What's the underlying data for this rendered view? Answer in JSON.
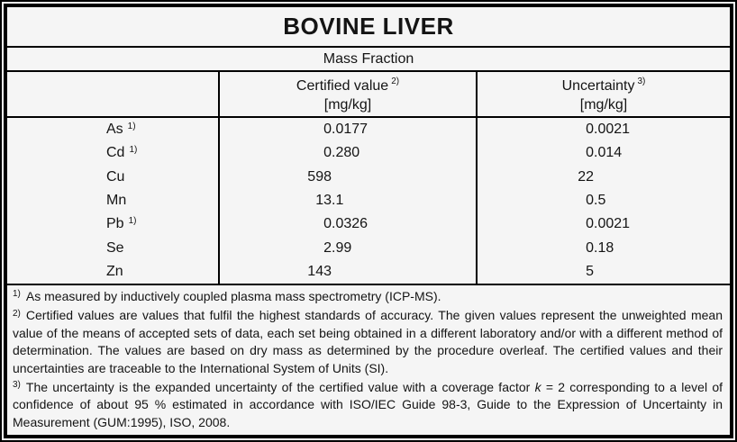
{
  "title": "BOVINE LIVER",
  "subtitle": "Mass Fraction",
  "table": {
    "columns": [
      {
        "label": "",
        "note": "",
        "unit": ""
      },
      {
        "label": "Certified value",
        "note": "2)",
        "unit": "[mg/kg]"
      },
      {
        "label": "Uncertainty",
        "note": "3)",
        "unit": "[mg/kg]"
      }
    ],
    "rows": [
      {
        "element": "As",
        "note": "1)",
        "certified": "0.0177",
        "uncertainty": "0.0021"
      },
      {
        "element": "Cd",
        "note": "1)",
        "certified": "0.280",
        "uncertainty": "0.014"
      },
      {
        "element": "Cu",
        "note": "",
        "certified": "598",
        "uncertainty": "22"
      },
      {
        "element": "Mn",
        "note": "",
        "certified": "13.1",
        "uncertainty": "0.5"
      },
      {
        "element": "Pb",
        "note": "1)",
        "certified": "0.0326",
        "uncertainty": "0.0021"
      },
      {
        "element": "Se",
        "note": "",
        "certified": "2.99",
        "uncertainty": "0.18"
      },
      {
        "element": "Zn",
        "note": "",
        "certified": "143",
        "uncertainty": "5"
      }
    ]
  },
  "footnotes": [
    {
      "marker": "1)",
      "parts": [
        {
          "text": "As measured by inductively coupled plasma mass spectrometry (ICP-MS).",
          "italic": false
        }
      ]
    },
    {
      "marker": "2)",
      "parts": [
        {
          "text": "Certified values are values that fulfil the highest standards of accuracy. The given values represent the unweighted mean value of the means of accepted sets of data, each set being obtained in a different laboratory and/or with a different method of determination. The values are based on dry mass as determined by the procedure overleaf. The certified values and their uncertainties are traceable to the International System of Units (SI).",
          "italic": false
        }
      ]
    },
    {
      "marker": "3)",
      "parts": [
        {
          "text": "The uncertainty is the expanded uncertainty of the certified value with a coverage factor ",
          "italic": false
        },
        {
          "text": "k",
          "italic": true
        },
        {
          "text": " = 2 corresponding to a level of confidence of about 95 % estimated in accordance with ISO/IEC Guide 98-3, Guide to the Expression of Uncertainty in Measurement (GUM:1995), ISO, 2008.",
          "italic": false
        }
      ]
    }
  ],
  "colors": {
    "background": "#f5f5f5",
    "border": "#000000",
    "text": "#141414"
  }
}
